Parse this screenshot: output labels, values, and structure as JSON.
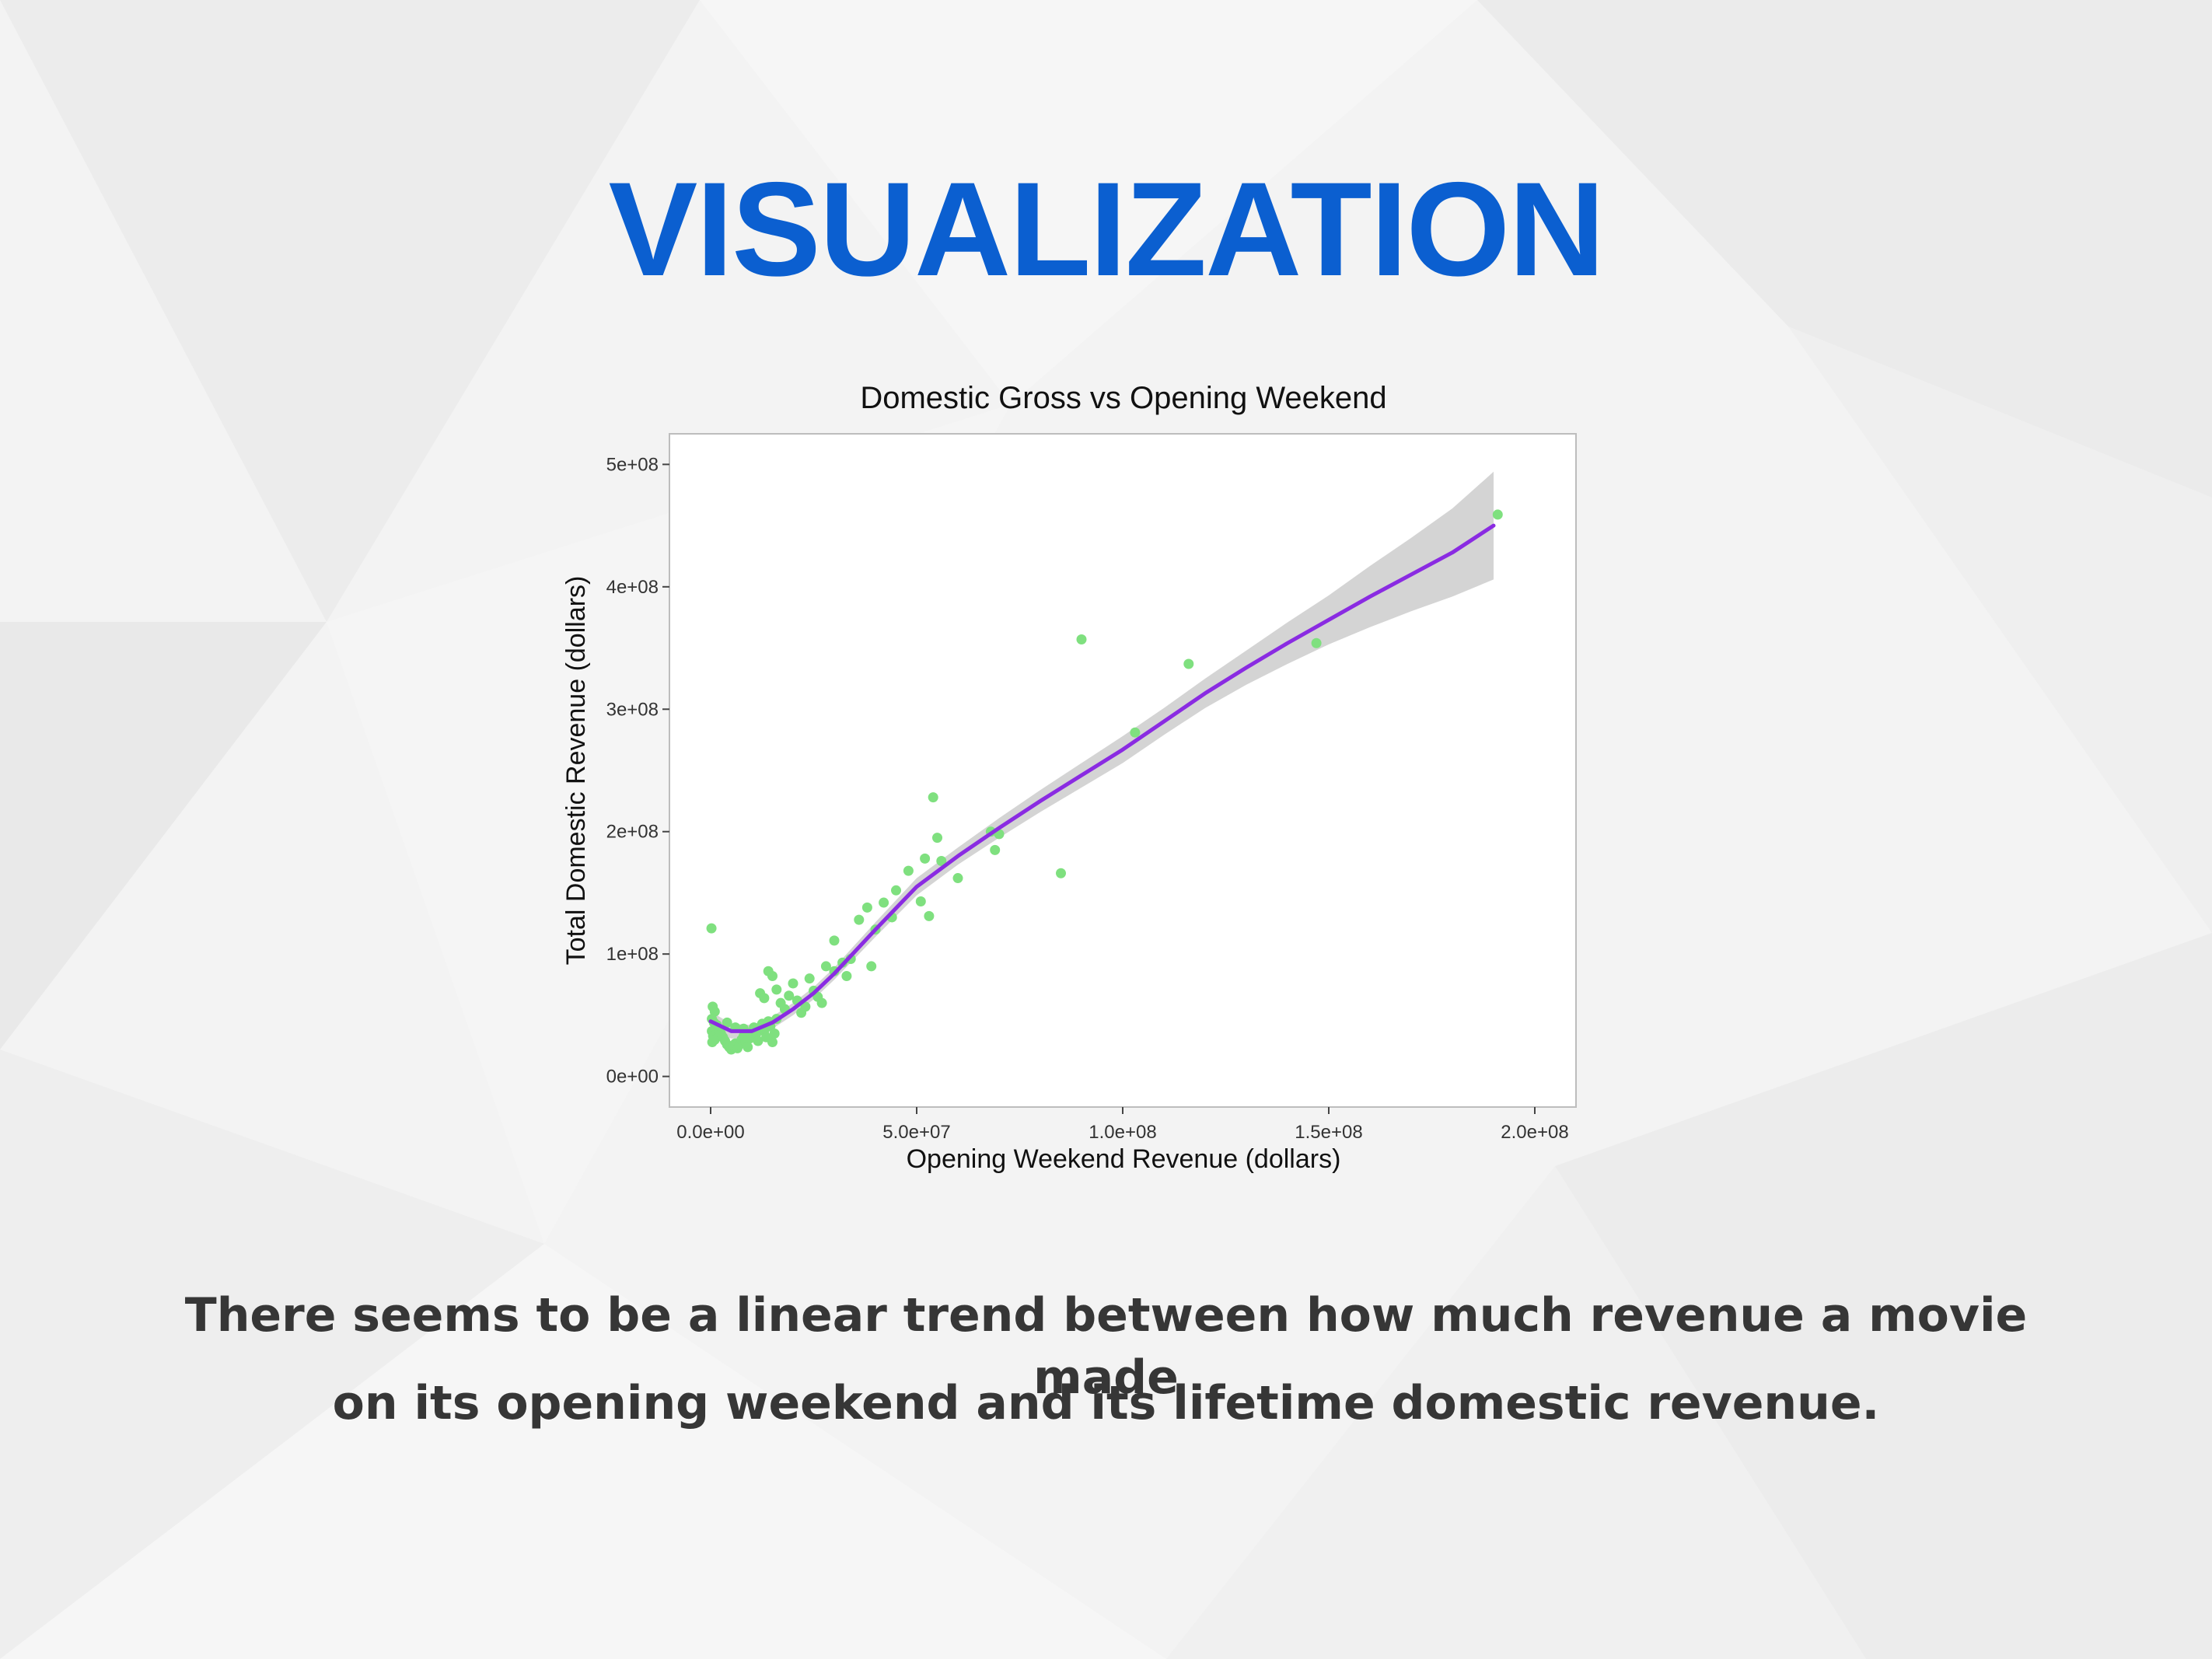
{
  "slide": {
    "title": "VISUALIZATION",
    "caption_line1": "There seems to be a linear trend between how much revenue a movie made",
    "caption_line2": "on its opening weekend and its lifetime domestic revenue."
  },
  "colors": {
    "title": "#0b5fd0",
    "caption": "#363636",
    "point": "#7fe07f",
    "trend": "#8a2be2",
    "band": "#bdbdbd",
    "panel": "#ffffff"
  },
  "chart_data": {
    "type": "scatter",
    "title": "Domestic Gross vs Opening Weekend",
    "xlabel": "Opening Weekend Revenue (dollars)",
    "ylabel": "Total Domestic Revenue (dollars)",
    "xlim": [
      -10000000,
      210000000
    ],
    "ylim": [
      -25000000,
      525000000
    ],
    "x_ticks": [
      {
        "value": 0,
        "label": "0.0e+00"
      },
      {
        "value": 50000000,
        "label": "5.0e+07"
      },
      {
        "value": 100000000,
        "label": "1.0e+08"
      },
      {
        "value": 150000000,
        "label": "1.5e+08"
      },
      {
        "value": 200000000,
        "label": "2.0e+08"
      }
    ],
    "y_ticks": [
      {
        "value": 0,
        "label": "0e+00"
      },
      {
        "value": 100000000,
        "label": "1e+08"
      },
      {
        "value": 200000000,
        "label": "2e+08"
      },
      {
        "value": 300000000,
        "label": "3e+08"
      },
      {
        "value": 400000000,
        "label": "4e+08"
      },
      {
        "value": 500000000,
        "label": "5e+08"
      }
    ],
    "grid": false,
    "points": [
      [
        200000,
        121000000
      ],
      [
        500000,
        57000000
      ],
      [
        1000000,
        53000000
      ],
      [
        300000,
        47000000
      ],
      [
        800000,
        44000000
      ],
      [
        300000,
        37000000
      ],
      [
        600000,
        33000000
      ],
      [
        1000000,
        30000000
      ],
      [
        400000,
        28000000
      ],
      [
        1500000,
        42000000
      ],
      [
        2000000,
        38000000
      ],
      [
        2500000,
        35000000
      ],
      [
        3000000,
        32000000
      ],
      [
        3500000,
        29000000
      ],
      [
        4000000,
        26000000
      ],
      [
        4500000,
        24000000
      ],
      [
        5000000,
        22000000
      ],
      [
        5500000,
        25000000
      ],
      [
        6000000,
        27000000
      ],
      [
        6500000,
        23000000
      ],
      [
        7000000,
        26000000
      ],
      [
        7500000,
        30000000
      ],
      [
        8000000,
        33000000
      ],
      [
        8500000,
        28000000
      ],
      [
        9000000,
        24000000
      ],
      [
        9500000,
        31000000
      ],
      [
        10000000,
        36000000
      ],
      [
        10500000,
        40000000
      ],
      [
        11000000,
        34000000
      ],
      [
        11500000,
        29000000
      ],
      [
        12000000,
        38000000
      ],
      [
        12500000,
        43000000
      ],
      [
        13000000,
        37000000
      ],
      [
        13500000,
        32000000
      ],
      [
        14000000,
        45000000
      ],
      [
        14500000,
        41000000
      ],
      [
        15000000,
        28000000
      ],
      [
        15500000,
        35000000
      ],
      [
        16000000,
        47000000
      ],
      [
        4000000,
        44000000
      ],
      [
        6000000,
        40000000
      ],
      [
        8000000,
        39000000
      ],
      [
        12000000,
        68000000
      ],
      [
        13000000,
        64000000
      ],
      [
        14000000,
        86000000
      ],
      [
        15000000,
        82000000
      ],
      [
        16000000,
        71000000
      ],
      [
        17000000,
        60000000
      ],
      [
        18000000,
        55000000
      ],
      [
        19000000,
        66000000
      ],
      [
        20000000,
        76000000
      ],
      [
        21000000,
        62000000
      ],
      [
        22000000,
        52000000
      ],
      [
        23000000,
        57000000
      ],
      [
        24000000,
        80000000
      ],
      [
        25000000,
        70000000
      ],
      [
        26000000,
        65000000
      ],
      [
        27000000,
        60000000
      ],
      [
        28000000,
        90000000
      ],
      [
        30000000,
        86000000
      ],
      [
        30000000,
        111000000
      ],
      [
        32000000,
        93000000
      ],
      [
        33000000,
        82000000
      ],
      [
        34000000,
        96000000
      ],
      [
        36000000,
        128000000
      ],
      [
        38000000,
        138000000
      ],
      [
        39000000,
        90000000
      ],
      [
        40000000,
        120000000
      ],
      [
        42000000,
        142000000
      ],
      [
        44000000,
        130000000
      ],
      [
        45000000,
        152000000
      ],
      [
        48000000,
        168000000
      ],
      [
        51000000,
        143000000
      ],
      [
        52000000,
        178000000
      ],
      [
        53000000,
        131000000
      ],
      [
        54000000,
        228000000
      ],
      [
        55000000,
        195000000
      ],
      [
        56000000,
        176000000
      ],
      [
        60000000,
        162000000
      ],
      [
        68000000,
        200000000
      ],
      [
        69000000,
        185000000
      ],
      [
        70000000,
        198000000
      ],
      [
        85000000,
        166000000
      ],
      [
        90000000,
        357000000
      ],
      [
        103000000,
        281000000
      ],
      [
        116000000,
        337000000
      ],
      [
        147000000,
        354000000
      ],
      [
        191000000,
        459000000
      ]
    ],
    "trend": {
      "x": [
        0,
        5000000,
        10000000,
        15000000,
        20000000,
        25000000,
        30000000,
        40000000,
        50000000,
        60000000,
        70000000,
        80000000,
        90000000,
        100000000,
        110000000,
        120000000,
        130000000,
        140000000,
        150000000,
        160000000,
        170000000,
        180000000,
        190000000
      ],
      "y": [
        45000000,
        37000000,
        37000000,
        44000000,
        55000000,
        68000000,
        84000000,
        120000000,
        155000000,
        180000000,
        203000000,
        225000000,
        246000000,
        267000000,
        290000000,
        313000000,
        334000000,
        354000000,
        373000000,
        392000000,
        410000000,
        428000000,
        450000000
      ],
      "band_half_width": [
        8000000,
        6000000,
        5000000,
        5000000,
        5000000,
        5000000,
        5000000,
        6000000,
        7000000,
        7000000,
        8000000,
        9000000,
        10000000,
        11000000,
        11000000,
        12000000,
        14000000,
        17000000,
        20000000,
        25000000,
        30000000,
        36000000,
        44000000
      ]
    }
  }
}
